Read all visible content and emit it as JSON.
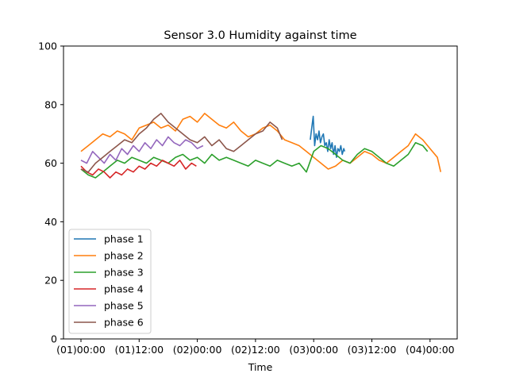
{
  "chart_data": {
    "type": "line",
    "title": "Sensor 3.0 Humidity against  time",
    "xlabel": "Time",
    "ylabel": "",
    "x_unit": "hours",
    "x_ticks": [
      {
        "value": 0,
        "label": "(01)00:00"
      },
      {
        "value": 12,
        "label": "(01)12:00"
      },
      {
        "value": 24,
        "label": "(02)00:00"
      },
      {
        "value": 36,
        "label": "(02)12:00"
      },
      {
        "value": 48,
        "label": "(03)00:00"
      },
      {
        "value": 60,
        "label": "(03)12:00"
      },
      {
        "value": 72,
        "label": "(04)00:00"
      }
    ],
    "xlim": [
      -3.6,
      77.6
    ],
    "ylim": [
      0,
      100
    ],
    "y_ticks": [
      0,
      20,
      40,
      60,
      80,
      100
    ],
    "grid": false,
    "legend_position": "lower-left",
    "series": [
      {
        "name": "phase 1",
        "color": "#1f77b4",
        "x": [
          47.3,
          47.6,
          47.9,
          48.2,
          48.5,
          48.8,
          49.1,
          49.4,
          49.7,
          50.0,
          50.3,
          50.6,
          50.9,
          51.2,
          51.5,
          51.8,
          52.1,
          52.4,
          52.7,
          53.0,
          53.3,
          53.6,
          53.9,
          54.2,
          54.4
        ],
        "y": [
          68,
          72,
          76,
          66,
          70,
          68,
          71,
          67,
          69,
          70,
          66,
          67,
          64,
          68,
          65,
          67,
          63,
          66,
          62,
          65,
          64,
          66,
          63,
          65,
          64
        ]
      },
      {
        "name": "phase 2",
        "color": "#ff7f0e",
        "x": [
          0,
          1.5,
          3,
          4.5,
          6,
          7.5,
          9,
          10.5,
          12,
          13.5,
          15,
          16.5,
          18,
          19.5,
          21,
          22.5,
          24,
          25.5,
          27,
          28.5,
          30,
          31.5,
          33,
          34.5,
          36,
          37.5,
          39,
          40.5,
          42,
          43.5,
          45,
          46.5,
          48,
          49.5,
          51,
          52.5,
          54,
          55.5,
          57,
          58.5,
          60,
          61.5,
          63,
          64.5,
          66,
          67.5,
          69,
          70.5,
          72,
          73.5,
          74.2
        ],
        "y": [
          64,
          66,
          68,
          70,
          69,
          71,
          70,
          68,
          72,
          73,
          74,
          72,
          73,
          71,
          75,
          76,
          74,
          77,
          75,
          73,
          72,
          74,
          71,
          69,
          70,
          72,
          73,
          71,
          68,
          67,
          66,
          64,
          62,
          60,
          58,
          59,
          61,
          60,
          62,
          64,
          63,
          61,
          60,
          62,
          64,
          66,
          70,
          68,
          65,
          62,
          57
        ]
      },
      {
        "name": "phase 3",
        "color": "#2ca02c",
        "x": [
          0,
          1.5,
          3,
          4.5,
          6,
          7.5,
          9,
          10.5,
          12,
          13.5,
          15,
          16.5,
          18,
          19.5,
          21,
          22.5,
          24,
          25.5,
          27,
          28.5,
          30,
          31.5,
          33,
          34.5,
          36,
          37.5,
          39,
          40.5,
          42,
          43.5,
          45,
          46.5,
          48,
          49.5,
          51,
          52.5,
          54,
          55.5,
          57,
          58.5,
          60,
          61.5,
          63,
          64.5,
          66,
          67.5,
          69,
          70.5,
          71.5
        ],
        "y": [
          58,
          56,
          55,
          57,
          59,
          61,
          60,
          62,
          61,
          60,
          62,
          61,
          60,
          62,
          63,
          61,
          62,
          60,
          63,
          61,
          62,
          61,
          60,
          59,
          61,
          60,
          59,
          61,
          60,
          59,
          60,
          57,
          64,
          66,
          65,
          63,
          61,
          60,
          63,
          65,
          64,
          62,
          60,
          59,
          61,
          63,
          67,
          66,
          64
        ]
      },
      {
        "name": "phase 4",
        "color": "#d62728",
        "x": [
          0,
          1.2,
          2.4,
          3.6,
          4.8,
          6,
          7.2,
          8.4,
          9.6,
          10.8,
          12,
          13.2,
          14.4,
          15.6,
          16.8,
          18,
          19.2,
          20.4,
          21.6,
          22.8,
          23.8
        ],
        "y": [
          59,
          57,
          56,
          58,
          57,
          55,
          57,
          56,
          58,
          57,
          59,
          58,
          60,
          59,
          61,
          60,
          59,
          61,
          58,
          60,
          59
        ]
      },
      {
        "name": "phase 5",
        "color": "#9467bd",
        "x": [
          0,
          1.2,
          2.4,
          3.6,
          4.8,
          6,
          7.2,
          8.4,
          9.6,
          10.8,
          12,
          13.2,
          14.4,
          15.6,
          16.8,
          18,
          19.2,
          20.4,
          21.6,
          22.8,
          24,
          25.2
        ],
        "y": [
          61,
          60,
          64,
          62,
          60,
          63,
          61,
          65,
          63,
          66,
          64,
          67,
          65,
          68,
          66,
          69,
          67,
          66,
          68,
          67,
          65,
          66
        ]
      },
      {
        "name": "phase 6",
        "color": "#8c564b",
        "x": [
          0,
          1.5,
          3,
          4.5,
          6,
          7.5,
          9,
          10.5,
          12,
          13.5,
          15,
          16.5,
          18,
          19.5,
          21,
          22.5,
          24,
          25.5,
          27,
          28.5,
          30,
          31.5,
          33,
          34.5,
          36,
          37.5,
          39,
          40.5,
          41.5
        ],
        "y": [
          58,
          57,
          60,
          62,
          64,
          66,
          68,
          67,
          70,
          72,
          75,
          77,
          74,
          72,
          70,
          68,
          67,
          69,
          66,
          68,
          65,
          64,
          66,
          68,
          70,
          71,
          74,
          72,
          68
        ]
      }
    ]
  }
}
